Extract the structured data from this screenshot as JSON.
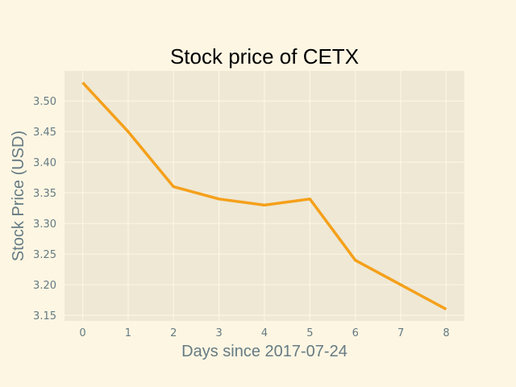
{
  "chart_data": {
    "type": "line",
    "title": "Stock price of CETX",
    "xlabel": "Days since 2017-07-24",
    "ylabel": "Stock Price (USD)",
    "x": [
      0,
      1,
      2,
      3,
      4,
      5,
      6,
      7,
      8
    ],
    "series": [
      {
        "values": [
          3.53,
          3.45,
          3.36,
          3.34,
          3.33,
          3.34,
          3.24,
          3.2,
          3.16
        ]
      }
    ],
    "xlim": [
      -0.4,
      8.4
    ],
    "ylim": [
      3.141,
      3.549
    ],
    "xticks": [
      0,
      1,
      2,
      3,
      4,
      5,
      6,
      7,
      8
    ],
    "yticks": [
      3.15,
      3.2,
      3.25,
      3.3,
      3.35,
      3.4,
      3.45,
      3.5
    ],
    "grid": true,
    "colors": {
      "figure_bg": "#fdf6e3",
      "axes_bg": "#eee8d5",
      "grid": "#fdf6e3",
      "line": "#f5a01a",
      "tick_text": "#657b83",
      "label_text": "#657b83",
      "title_text": "#000000"
    }
  }
}
